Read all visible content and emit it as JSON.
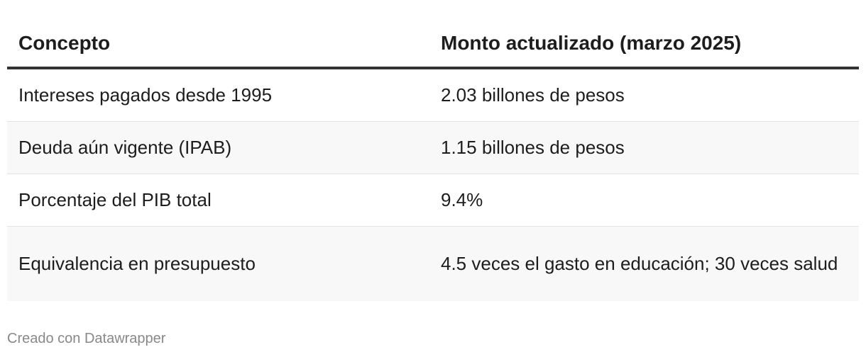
{
  "chart_data": {
    "type": "table",
    "columns": [
      "Concepto",
      "Monto actualizado (marzo 2025)"
    ],
    "rows": [
      [
        "Intereses pagados desde 1995",
        "2.03 billones de pesos"
      ],
      [
        "Deuda aún vigente (IPAB)",
        "1.15 billones de pesos"
      ],
      [
        "Porcentaje del PIB total",
        "9.4%"
      ],
      [
        "Equivalencia en presupuesto",
        "4.5 veces el gasto en educación; 30 veces salud"
      ]
    ]
  },
  "footer": {
    "credit": "Creado con Datawrapper"
  },
  "colors": {
    "text": "#1d1d1d",
    "header_rule": "#333333",
    "stripe": "#f8f8f8",
    "footer_text": "#888888"
  }
}
